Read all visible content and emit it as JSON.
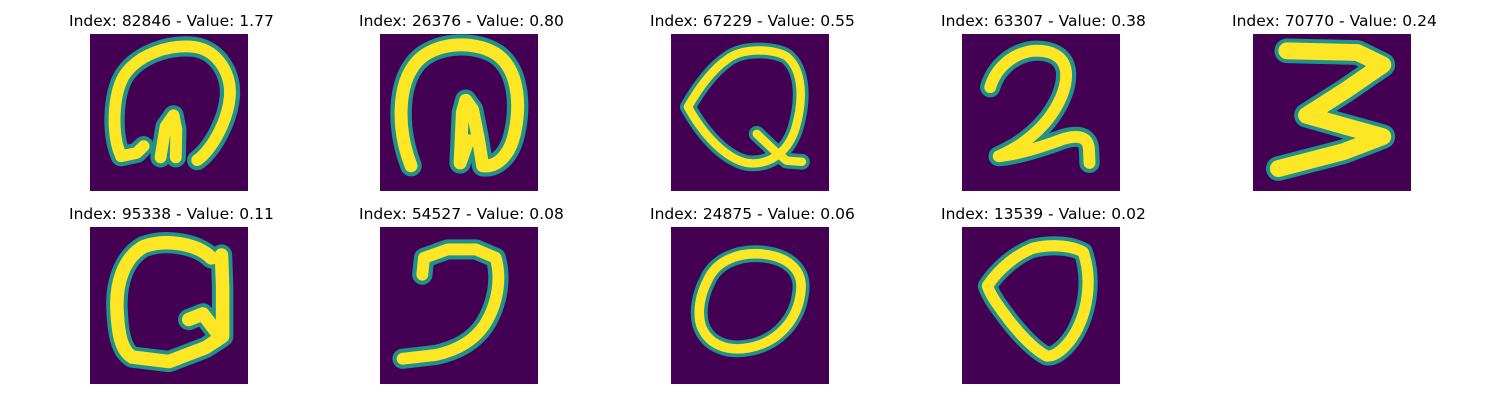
{
  "figure": {
    "panels": [
      {
        "title": "Index: 82846 - Value: 1.77",
        "index": 82846,
        "value": 1.77,
        "image_semantic": "handwritten-curl-glyph"
      },
      {
        "title": "Index: 26376 - Value: 0.80",
        "index": 26376,
        "value": 0.8,
        "image_semantic": "handwritten-arch-glyph"
      },
      {
        "title": "Index: 67229 - Value: 0.55",
        "index": 67229,
        "value": 0.55,
        "image_semantic": "handwritten-q-glyph"
      },
      {
        "title": "Index: 63307 - Value: 0.38",
        "index": 63307,
        "value": 0.38,
        "image_semantic": "handwritten-2-glyph"
      },
      {
        "title": "Index: 70770 - Value: 0.24",
        "index": 70770,
        "value": 0.24,
        "image_semantic": "handwritten-3-glyph"
      },
      {
        "title": "Index: 95338 - Value: 0.11",
        "index": 95338,
        "value": 0.11,
        "image_semantic": "handwritten-g-glyph"
      },
      {
        "title": "Index: 54527 - Value: 0.08",
        "index": 54527,
        "value": 0.08,
        "image_semantic": "handwritten-reversed-c-glyph"
      },
      {
        "title": "Index: 24875 - Value: 0.06",
        "index": 24875,
        "value": 0.06,
        "image_semantic": "handwritten-0-glyph"
      },
      {
        "title": "Index: 13539 - Value: 0.02",
        "index": 13539,
        "value": 0.02,
        "image_semantic": "handwritten-triangle-glyph"
      }
    ],
    "colors": {
      "background": "#440154",
      "mid": "#21918c",
      "stroke": "#fde725"
    }
  }
}
